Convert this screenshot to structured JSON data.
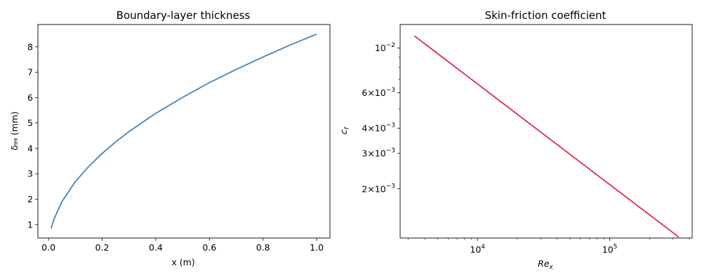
{
  "chart_data": [
    {
      "type": "line",
      "title": "Boundary-layer thickness",
      "xlabel": "x (m)",
      "ylabel": "δ₉₉ (mm)",
      "xlim": [
        -0.0395,
        1.0495
      ],
      "ylim": [
        0.47,
        8.88
      ],
      "xticks": [
        0,
        0.2,
        0.4,
        0.6,
        0.8,
        1.0
      ],
      "xtick_labels": [
        "0.0",
        "0.2",
        "0.4",
        "0.6",
        "0.8",
        "1.0"
      ],
      "yticks": [
        1,
        2,
        3,
        4,
        5,
        6,
        7,
        8
      ],
      "ytick_labels": [
        "1",
        "2",
        "3",
        "4",
        "5",
        "6",
        "7",
        "8"
      ],
      "grid": false,
      "series": [
        {
          "color": "#4682b4",
          "x": [
            0.01,
            0.02,
            0.05,
            0.1,
            0.15,
            0.2,
            0.25,
            0.3,
            0.4,
            0.5,
            0.6,
            0.7,
            0.8,
            0.9,
            1.0
          ],
          "y": [
            0.85,
            1.2,
            1.9,
            2.69,
            3.29,
            3.8,
            4.25,
            4.66,
            5.38,
            6.01,
            6.59,
            7.11,
            7.6,
            8.07,
            8.5
          ]
        }
      ]
    },
    {
      "type": "line",
      "title": "Skin-friction coefficient",
      "xlabel": "Re_x",
      "ylabel": "c_f",
      "xscale": "log",
      "yscale": "log",
      "xlim": [
        2600,
        420000
      ],
      "ylim": [
        0.00114,
        0.0131
      ],
      "xticks": [
        10000,
        100000
      ],
      "xtick_labels": [
        {
          "base": "10",
          "exp": "4"
        },
        {
          "base": "10",
          "exp": "5"
        }
      ],
      "yticks": [
        0.01,
        0.006,
        0.004,
        0.003,
        0.002
      ],
      "ytick_labels": [
        {
          "base": "10",
          "exp": "−2"
        },
        {
          "base": "6×10",
          "exp": "−3"
        },
        {
          "base": "4×10",
          "exp": "−3"
        },
        {
          "base": "3×10",
          "exp": "−3"
        },
        {
          "base": "2×10",
          "exp": "−3"
        }
      ],
      "grid": false,
      "series": [
        {
          "color": "#dc143c",
          "x": [
            3333,
            333333
          ],
          "y": [
            0.0115,
            0.00115
          ]
        }
      ]
    }
  ]
}
